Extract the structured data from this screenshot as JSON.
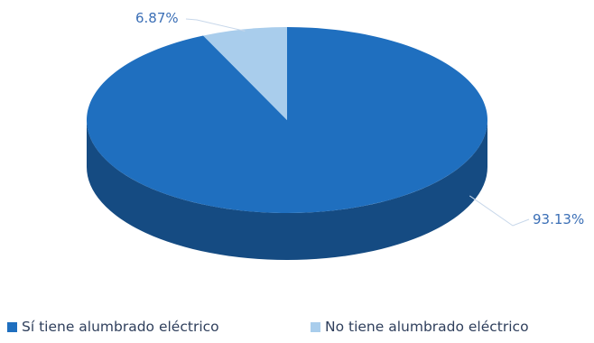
{
  "chart_data": {
    "type": "pie",
    "style": "3d",
    "title": "",
    "categories": [
      "Sí tiene alumbrado eléctrico",
      "No tiene alumbrado eléctrico"
    ],
    "values": [
      93.13,
      6.87
    ],
    "data_labels": [
      "93.13%",
      "6.87%"
    ],
    "colors": [
      "#1f6fbf",
      "#a9cdec"
    ],
    "legend_position": "bottom"
  }
}
